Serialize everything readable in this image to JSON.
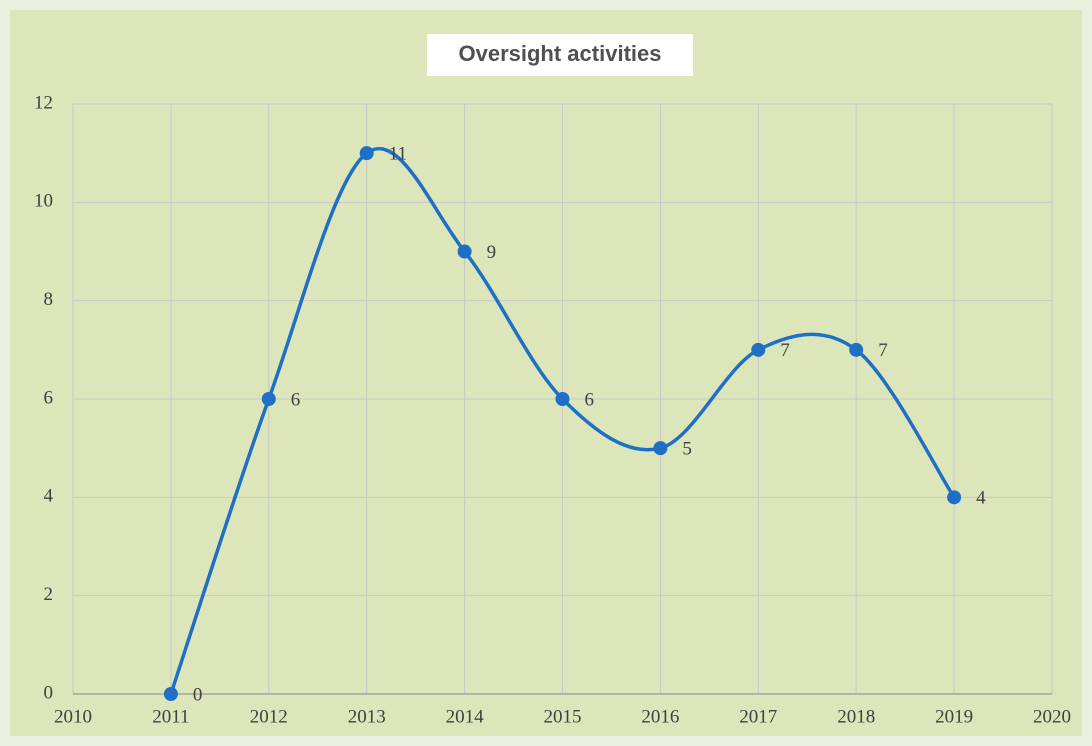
{
  "chart_data": {
    "type": "line",
    "title": "Oversight activities",
    "x": [
      2011,
      2012,
      2013,
      2014,
      2015,
      2016,
      2017,
      2018,
      2019
    ],
    "series": [
      {
        "name": "Oversight activities",
        "color": "#1f6fc5",
        "values": [
          0,
          6,
          11,
          9,
          6,
          5,
          7,
          7,
          4
        ]
      }
    ],
    "xlim": [
      2010,
      2020
    ],
    "xticks": [
      2010,
      2011,
      2012,
      2013,
      2014,
      2015,
      2016,
      2017,
      2018,
      2019,
      2020
    ],
    "ylim": [
      0,
      12
    ],
    "yticks": [
      0,
      2,
      4,
      6,
      8,
      10,
      12
    ],
    "grid": true,
    "smooth": true,
    "data_labels": true
  }
}
